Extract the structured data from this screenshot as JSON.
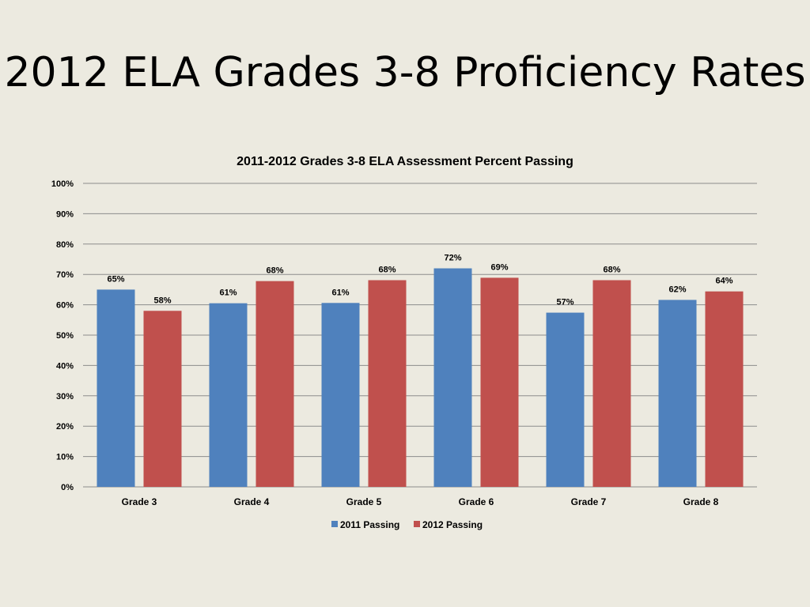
{
  "slide": {
    "title": "2012 ELA Grades 3-8 Proficiency Rates"
  },
  "chart_data": {
    "type": "bar",
    "title": "2011-2012 Grades 3-8 ELA Assessment Percent Passing",
    "categories": [
      "Grade 3",
      "Grade 4",
      "Grade 5",
      "Grade 6",
      "Grade 7",
      "Grade 8"
    ],
    "series": [
      {
        "name": "2011 Passing",
        "color": "#4F81BD",
        "values": [
          65,
          60.5,
          60.6,
          72,
          57.4,
          61.6
        ],
        "labels": [
          "65%",
          "61%",
          "61%",
          "72%",
          "57%",
          "62%"
        ]
      },
      {
        "name": "2012 Passing",
        "color": "#C0504D",
        "values": [
          58,
          67.8,
          68.1,
          68.9,
          68.1,
          64.4
        ],
        "labels": [
          "58%",
          "68%",
          "68%",
          "69%",
          "68%",
          "64%"
        ]
      }
    ],
    "y_ticks": [
      "0%",
      "10%",
      "20%",
      "30%",
      "40%",
      "50%",
      "60%",
      "70%",
      "80%",
      "90%",
      "100%"
    ],
    "ylim": [
      0,
      100
    ],
    "grid": true,
    "legend_position": "bottom"
  }
}
